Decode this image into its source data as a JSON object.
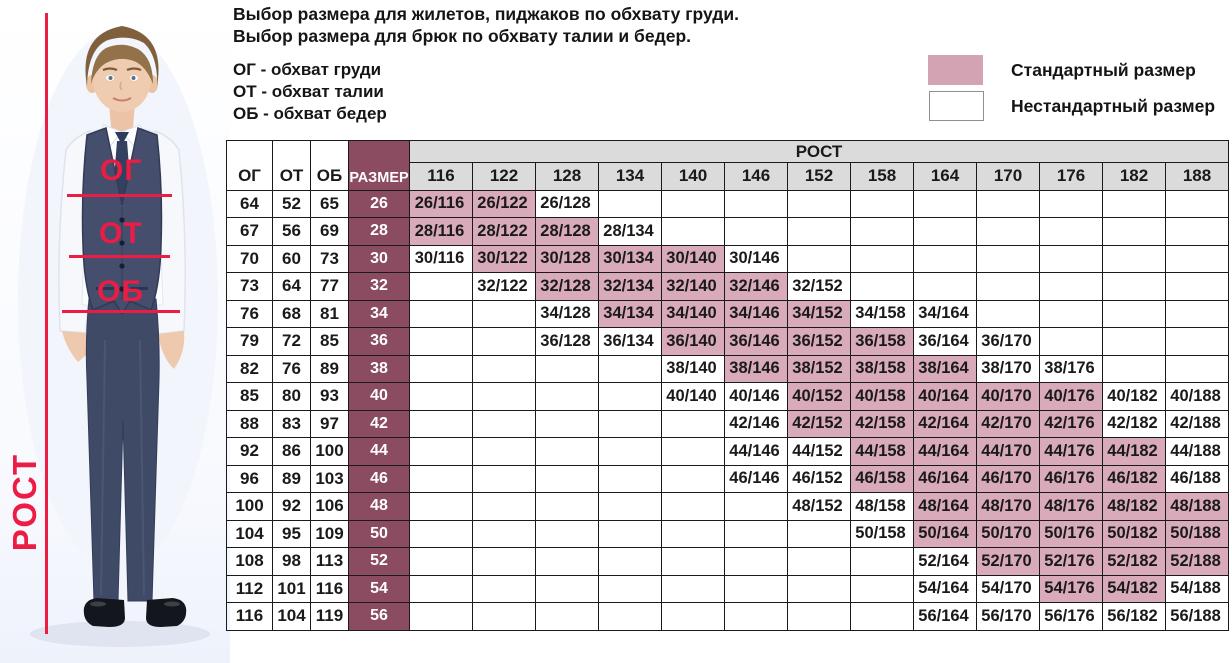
{
  "colors": {
    "standard_pink": "#d9abba",
    "legend_pink": "#d2a3b3",
    "size_maroon": "#8b4b60",
    "header_gray": "#dbdbdb",
    "annotation_red": "#ec1c45"
  },
  "title": {
    "line1": "Выбор размера для жилетов, пиджаков по обхвату груди.",
    "line2": "Выбор размера для брюк по обхвату талии и бедер."
  },
  "abbreviations": [
    "ОГ - обхват груди",
    "ОТ - обхват талии",
    "ОБ - обхват бедер"
  ],
  "legend": {
    "standard": "Стандартный размер",
    "nonstandard": "Нестандартный размер"
  },
  "photo": {
    "chest": "ОГ",
    "waist": "ОТ",
    "hips": "ОБ",
    "height": "РОСТ"
  },
  "table": {
    "corner_headers": [
      "ОГ",
      "ОТ",
      "ОБ",
      "РАЗМЕР"
    ],
    "rost_header": "РОСТ",
    "heights": [
      "116",
      "122",
      "128",
      "134",
      "140",
      "146",
      "152",
      "158",
      "164",
      "170",
      "176",
      "182",
      "188"
    ],
    "rows": [
      {
        "og": "64",
        "ot": "52",
        "ob": "65",
        "size": "26",
        "cells": [
          {
            "l": "26/116",
            "s": true
          },
          {
            "l": "26/122",
            "s": true
          },
          {
            "l": "26/128",
            "s": false
          },
          null,
          null,
          null,
          null,
          null,
          null,
          null,
          null,
          null,
          null
        ]
      },
      {
        "og": "67",
        "ot": "56",
        "ob": "69",
        "size": "28",
        "cells": [
          {
            "l": "28/116",
            "s": true
          },
          {
            "l": "28/122",
            "s": true
          },
          {
            "l": "28/128",
            "s": true
          },
          {
            "l": "28/134",
            "s": false
          },
          null,
          null,
          null,
          null,
          null,
          null,
          null,
          null,
          null
        ]
      },
      {
        "og": "70",
        "ot": "60",
        "ob": "73",
        "size": "30",
        "cells": [
          {
            "l": "30/116",
            "s": false
          },
          {
            "l": "30/122",
            "s": true
          },
          {
            "l": "30/128",
            "s": true
          },
          {
            "l": "30/134",
            "s": true
          },
          {
            "l": "30/140",
            "s": true
          },
          {
            "l": "30/146",
            "s": false
          },
          null,
          null,
          null,
          null,
          null,
          null,
          null
        ]
      },
      {
        "og": "73",
        "ot": "64",
        "ob": "77",
        "size": "32",
        "cells": [
          null,
          {
            "l": "32/122",
            "s": false
          },
          {
            "l": "32/128",
            "s": true
          },
          {
            "l": "32/134",
            "s": true
          },
          {
            "l": "32/140",
            "s": true
          },
          {
            "l": "32/146",
            "s": true
          },
          {
            "l": "32/152",
            "s": false
          },
          null,
          null,
          null,
          null,
          null,
          null
        ]
      },
      {
        "og": "76",
        "ot": "68",
        "ob": "81",
        "size": "34",
        "cells": [
          null,
          null,
          {
            "l": "34/128",
            "s": false
          },
          {
            "l": "34/134",
            "s": true
          },
          {
            "l": "34/140",
            "s": true
          },
          {
            "l": "34/146",
            "s": true
          },
          {
            "l": "34/152",
            "s": true
          },
          {
            "l": "34/158",
            "s": false
          },
          {
            "l": "34/164",
            "s": false
          },
          null,
          null,
          null,
          null
        ]
      },
      {
        "og": "79",
        "ot": "72",
        "ob": "85",
        "size": "36",
        "cells": [
          null,
          null,
          {
            "l": "36/128",
            "s": false
          },
          {
            "l": "36/134",
            "s": false
          },
          {
            "l": "36/140",
            "s": true
          },
          {
            "l": "36/146",
            "s": true
          },
          {
            "l": "36/152",
            "s": true
          },
          {
            "l": "36/158",
            "s": true
          },
          {
            "l": "36/164",
            "s": false
          },
          {
            "l": "36/170",
            "s": false
          },
          null,
          null,
          null
        ]
      },
      {
        "og": "82",
        "ot": "76",
        "ob": "89",
        "size": "38",
        "cells": [
          null,
          null,
          null,
          null,
          {
            "l": "38/140",
            "s": false
          },
          {
            "l": "38/146",
            "s": true
          },
          {
            "l": "38/152",
            "s": true
          },
          {
            "l": "38/158",
            "s": true
          },
          {
            "l": "38/164",
            "s": true
          },
          {
            "l": "38/170",
            "s": false
          },
          {
            "l": "38/176",
            "s": false
          },
          null,
          null
        ]
      },
      {
        "og": "85",
        "ot": "80",
        "ob": "93",
        "size": "40",
        "cells": [
          null,
          null,
          null,
          null,
          {
            "l": "40/140",
            "s": false
          },
          {
            "l": "40/146",
            "s": false
          },
          {
            "l": "40/152",
            "s": true
          },
          {
            "l": "40/158",
            "s": true
          },
          {
            "l": "40/164",
            "s": true
          },
          {
            "l": "40/170",
            "s": true
          },
          {
            "l": "40/176",
            "s": true
          },
          {
            "l": "40/182",
            "s": false
          },
          {
            "l": "40/188",
            "s": false
          }
        ]
      },
      {
        "og": "88",
        "ot": "83",
        "ob": "97",
        "size": "42",
        "cells": [
          null,
          null,
          null,
          null,
          null,
          {
            "l": "42/146",
            "s": false
          },
          {
            "l": "42/152",
            "s": true
          },
          {
            "l": "42/158",
            "s": true
          },
          {
            "l": "42/164",
            "s": true
          },
          {
            "l": "42/170",
            "s": true
          },
          {
            "l": "42/176",
            "s": true
          },
          {
            "l": "42/182",
            "s": false
          },
          {
            "l": "42/188",
            "s": false
          }
        ]
      },
      {
        "og": "92",
        "ot": "86",
        "ob": "100",
        "size": "44",
        "cells": [
          null,
          null,
          null,
          null,
          null,
          {
            "l": "44/146",
            "s": false
          },
          {
            "l": "44/152",
            "s": false
          },
          {
            "l": "44/158",
            "s": true
          },
          {
            "l": "44/164",
            "s": true
          },
          {
            "l": "44/170",
            "s": true
          },
          {
            "l": "44/176",
            "s": true
          },
          {
            "l": "44/182",
            "s": true
          },
          {
            "l": "44/188",
            "s": false
          }
        ]
      },
      {
        "og": "96",
        "ot": "89",
        "ob": "103",
        "size": "46",
        "cells": [
          null,
          null,
          null,
          null,
          null,
          {
            "l": "46/146",
            "s": false
          },
          {
            "l": "46/152",
            "s": false
          },
          {
            "l": "46/158",
            "s": true
          },
          {
            "l": "46/164",
            "s": true
          },
          {
            "l": "46/170",
            "s": true
          },
          {
            "l": "46/176",
            "s": true
          },
          {
            "l": "46/182",
            "s": true
          },
          {
            "l": "46/188",
            "s": false
          }
        ]
      },
      {
        "og": "100",
        "ot": "92",
        "ob": "106",
        "size": "48",
        "cells": [
          null,
          null,
          null,
          null,
          null,
          null,
          {
            "l": "48/152",
            "s": false
          },
          {
            "l": "48/158",
            "s": false
          },
          {
            "l": "48/164",
            "s": true
          },
          {
            "l": "48/170",
            "s": true
          },
          {
            "l": "48/176",
            "s": true
          },
          {
            "l": "48/182",
            "s": true
          },
          {
            "l": "48/188",
            "s": true
          }
        ]
      },
      {
        "og": "104",
        "ot": "95",
        "ob": "109",
        "size": "50",
        "cells": [
          null,
          null,
          null,
          null,
          null,
          null,
          null,
          {
            "l": "50/158",
            "s": false
          },
          {
            "l": "50/164",
            "s": true
          },
          {
            "l": "50/170",
            "s": true
          },
          {
            "l": "50/176",
            "s": true
          },
          {
            "l": "50/182",
            "s": true
          },
          {
            "l": "50/188",
            "s": true
          }
        ]
      },
      {
        "og": "108",
        "ot": "98",
        "ob": "113",
        "size": "52",
        "cells": [
          null,
          null,
          null,
          null,
          null,
          null,
          null,
          null,
          {
            "l": "52/164",
            "s": false
          },
          {
            "l": "52/170",
            "s": true
          },
          {
            "l": "52/176",
            "s": true
          },
          {
            "l": "52/182",
            "s": true
          },
          {
            "l": "52/188",
            "s": true
          }
        ]
      },
      {
        "og": "112",
        "ot": "101",
        "ob": "116",
        "size": "54",
        "cells": [
          null,
          null,
          null,
          null,
          null,
          null,
          null,
          null,
          {
            "l": "54/164",
            "s": false
          },
          {
            "l": "54/170",
            "s": false
          },
          {
            "l": "54/176",
            "s": true
          },
          {
            "l": "54/182",
            "s": true
          },
          {
            "l": "54/188",
            "s": false
          }
        ]
      },
      {
        "og": "116",
        "ot": "104",
        "ob": "119",
        "size": "56",
        "cells": [
          null,
          null,
          null,
          null,
          null,
          null,
          null,
          null,
          {
            "l": "56/164",
            "s": false
          },
          {
            "l": "56/170",
            "s": false
          },
          {
            "l": "56/176",
            "s": false
          },
          {
            "l": "56/182",
            "s": false
          },
          {
            "l": "56/188",
            "s": false
          }
        ]
      }
    ]
  }
}
